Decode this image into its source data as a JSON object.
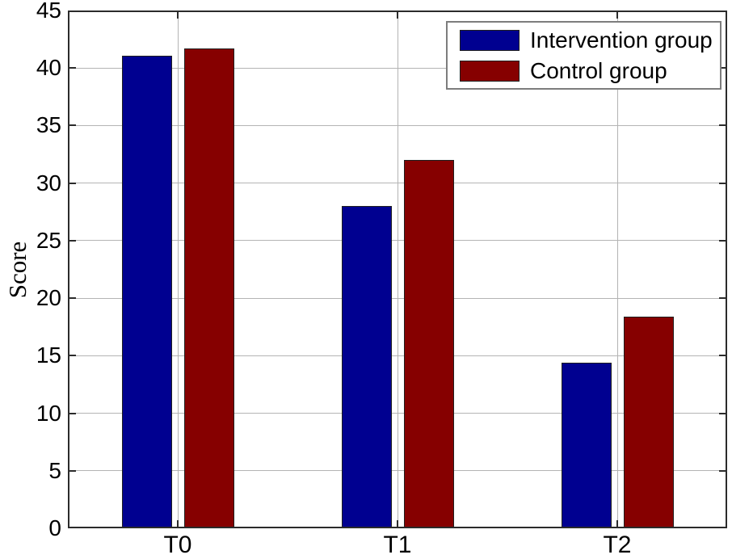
{
  "chart_data": {
    "type": "bar",
    "title": "",
    "categories": [
      "T0",
      "T1",
      "T2"
    ],
    "series": [
      {
        "name": "Intervention group",
        "color": "#000090",
        "values": [
          41.1,
          28.0,
          14.4
        ]
      },
      {
        "name": "Control group",
        "color": "#860000",
        "values": [
          41.7,
          32.0,
          18.4
        ]
      }
    ],
    "xlabel": "",
    "ylabel": "Score",
    "ylim": [
      0,
      45
    ],
    "yticks": [
      0,
      5,
      10,
      15,
      20,
      25,
      30,
      35,
      40,
      45
    ],
    "grid": "on",
    "legend_position": "top-right"
  },
  "colors": {
    "background": "#ffffff",
    "gridline": "#b4b4b4",
    "axis_border": "#2b2b2b",
    "bar_edge": "#1f1f1f",
    "legend_border": "#7d7d7d",
    "intervention_bar": "#000090",
    "control_bar": "#860000"
  }
}
